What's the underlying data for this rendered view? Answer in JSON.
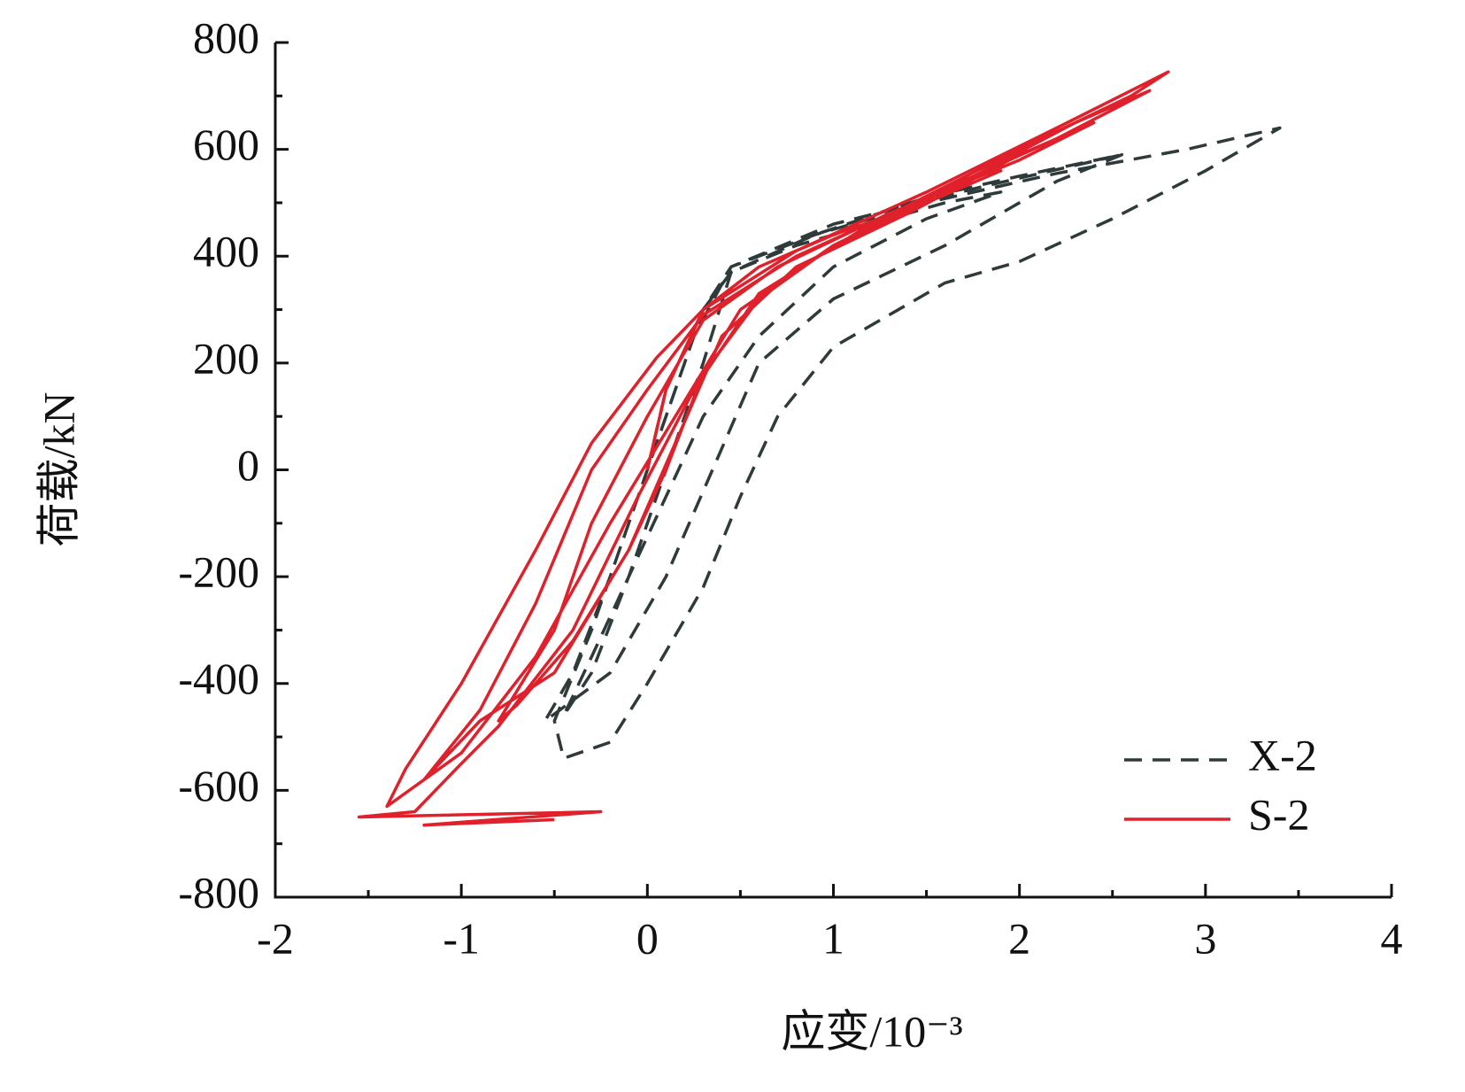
{
  "chart_data": {
    "type": "line",
    "xlabel": "应变/10⁻³",
    "ylabel": "荷载/kN",
    "xlim": [
      -2,
      4
    ],
    "xticks": [
      -2,
      -1,
      0,
      1,
      2,
      3,
      4
    ],
    "xminorticks": [
      -1.5,
      -0.5,
      0.5,
      1.5,
      2.5,
      3.5
    ],
    "ylim": [
      -800,
      800
    ],
    "yticks": [
      -800,
      -600,
      -400,
      -200,
      0,
      200,
      400,
      600,
      800
    ],
    "yminorticks": [
      -700,
      -500,
      -300,
      -100,
      100,
      300,
      500,
      700
    ],
    "grid": false,
    "legend": "lower right",
    "series": [
      {
        "name": "X-2",
        "color": "#2f3b3b",
        "line_style": "dashed",
        "x": [
          0,
          0.1,
          0.3,
          0.45,
          0.8,
          1.2,
          1.6,
          1.9,
          1.5,
          1.0,
          0.6,
          0.3,
          0.1,
          -0.1,
          -0.3,
          -0.45,
          -0.3,
          -0.1,
          0.1,
          0.3,
          0.45,
          0.9,
          1.5,
          2.0,
          2.55,
          2.2,
          1.6,
          1.0,
          0.6,
          0.35,
          0.1,
          -0.2,
          -0.55,
          -0.4,
          -0.2,
          0,
          0.25,
          0.45,
          0.9,
          1.5,
          2.2,
          2.9,
          3.4,
          3.0,
          2.5,
          2.0,
          1.6,
          1.0,
          0.7,
          0.5,
          0.3,
          0.0,
          -0.2,
          -0.45,
          -0.5,
          -0.3,
          -0.1,
          0.1,
          0.3,
          0.45,
          1.0,
          1.8,
          2.55
        ],
        "values": [
          0,
          150,
          300,
          370,
          420,
          460,
          500,
          520,
          470,
          380,
          250,
          100,
          -50,
          -200,
          -350,
          -460,
          -380,
          -200,
          0,
          200,
          370,
          440,
          510,
          550,
          590,
          540,
          420,
          320,
          200,
          0,
          -200,
          -380,
          -470,
          -380,
          -200,
          0,
          250,
          380,
          440,
          500,
          555,
          600,
          640,
          560,
          470,
          390,
          350,
          230,
          100,
          -50,
          -220,
          -400,
          -510,
          -540,
          -470,
          -300,
          -100,
          100,
          300,
          380,
          460,
          530,
          590
        ]
      },
      {
        "name": "S-2",
        "color": "#e0202a",
        "line_style": "solid",
        "x": [
          0,
          0.1,
          0.3,
          0.6,
          1.0,
          1.5,
          1.9,
          1.5,
          1.0,
          0.6,
          0.3,
          0.1,
          -0.1,
          -0.4,
          -0.7,
          -0.8,
          -0.5,
          -0.3,
          0.0,
          0.3,
          0.7,
          1.3,
          2.0,
          2.4,
          2.0,
          1.4,
          0.8,
          0.4,
          0.15,
          -0.1,
          -0.5,
          -0.9,
          -1.2,
          -0.9,
          -0.6,
          -0.3,
          0.0,
          0.3,
          0.8,
          1.5,
          2.2,
          2.7,
          2.3,
          1.7,
          1.0,
          0.5,
          0.15,
          -0.2,
          -0.6,
          -1.0,
          -1.4,
          -1.3,
          -1.0,
          -0.6,
          -0.3,
          0.05,
          0.3,
          0.8,
          1.5,
          2.2,
          2.8,
          2.6,
          2.0,
          1.2,
          0.6,
          0.25,
          -0.05,
          -0.4,
          -0.8,
          -1.0,
          -1.25,
          -1.55,
          -0.25,
          -1.2,
          -0.5
        ],
        "values": [
          0,
          150,
          300,
          380,
          440,
          500,
          560,
          500,
          420,
          320,
          180,
          0,
          -150,
          -320,
          -440,
          -470,
          -300,
          -100,
          100,
          280,
          380,
          480,
          580,
          650,
          590,
          480,
          380,
          250,
          50,
          -150,
          -380,
          -470,
          -580,
          -450,
          -250,
          0,
          150,
          290,
          400,
          510,
          620,
          710,
          650,
          540,
          420,
          300,
          100,
          -100,
          -350,
          -530,
          -630,
          -560,
          -400,
          -150,
          50,
          210,
          300,
          410,
          520,
          640,
          745,
          700,
          600,
          460,
          330,
          150,
          -50,
          -300,
          -480,
          -550,
          -640,
          -650,
          -640,
          -665,
          -655
        ]
      }
    ]
  }
}
